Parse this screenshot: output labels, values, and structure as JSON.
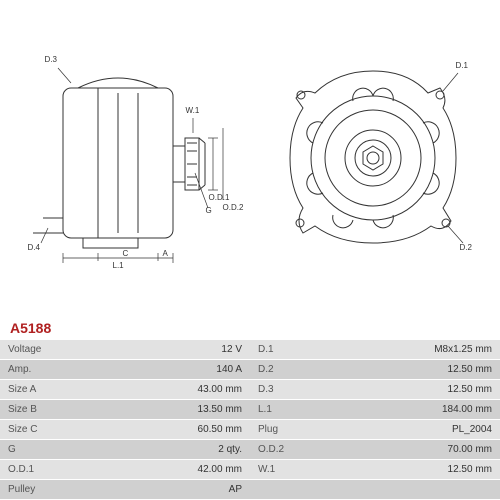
{
  "part_number": "A5188",
  "colors": {
    "part_number": "#b02020",
    "line": "#333333",
    "table_row_odd": "#e2e2e2",
    "table_row_even": "#d0d0d0",
    "text": "#333333",
    "label_text": "#555555"
  },
  "diagram": {
    "side_view": {
      "labels": [
        "D.3",
        "D.4",
        "L.1",
        "C",
        "A",
        "W.1",
        "G",
        "O.D.1",
        "O.D.2"
      ]
    },
    "front_view": {
      "labels": [
        "D.1",
        "D.2"
      ]
    }
  },
  "specs": [
    {
      "l1": "Voltage",
      "v1": "12 V",
      "l2": "D.1",
      "v2": "M8x1.25 mm"
    },
    {
      "l1": "Amp.",
      "v1": "140 A",
      "l2": "D.2",
      "v2": "12.50 mm"
    },
    {
      "l1": "Size A",
      "v1": "43.00 mm",
      "l2": "D.3",
      "v2": "12.50 mm"
    },
    {
      "l1": "Size B",
      "v1": "13.50 mm",
      "l2": "L.1",
      "v2": "184.00 mm"
    },
    {
      "l1": "Size C",
      "v1": "60.50 mm",
      "l2": "Plug",
      "v2": "PL_2004"
    },
    {
      "l1": "G",
      "v1": "2 qty.",
      "l2": "O.D.2",
      "v2": "70.00 mm"
    },
    {
      "l1": "O.D.1",
      "v1": "42.00 mm",
      "l2": "W.1",
      "v2": "12.50 mm"
    },
    {
      "l1": "Pulley",
      "v1": "AP",
      "l2": "",
      "v2": ""
    }
  ],
  "typography": {
    "part_number_fontsize": 14,
    "table_fontsize": 10,
    "label_fontsize": 8
  }
}
